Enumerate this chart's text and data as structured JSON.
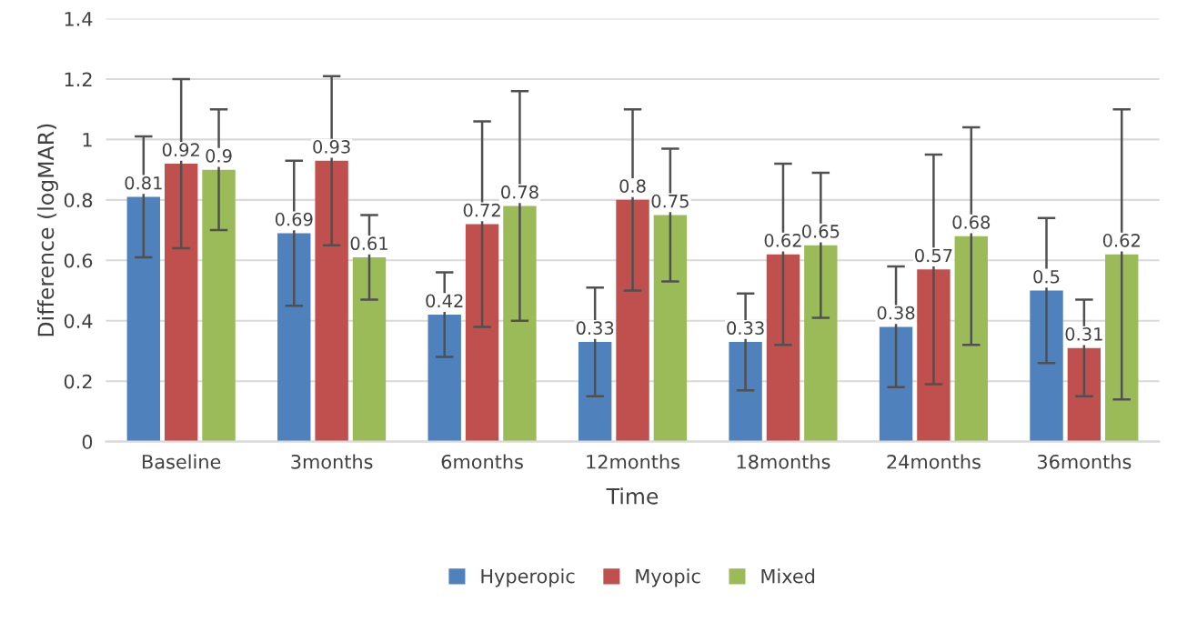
{
  "chart_data": {
    "type": "bar",
    "xlabel": "Time",
    "ylabel": "Difference (logMAR)",
    "categories": [
      "Baseline",
      "3months",
      "6months",
      "12months",
      "18months",
      "24months",
      "36months"
    ],
    "series": [
      {
        "name": "Hyperopic",
        "color": "#4f81bd",
        "values": [
          0.81,
          0.69,
          0.42,
          0.33,
          0.33,
          0.38,
          0.5
        ],
        "errors": [
          [
            0.61,
            1.01
          ],
          [
            0.45,
            0.93
          ],
          [
            0.28,
            0.56
          ],
          [
            0.15,
            0.51
          ],
          [
            0.17,
            0.49
          ],
          [
            0.18,
            0.58
          ],
          [
            0.26,
            0.74
          ]
        ]
      },
      {
        "name": "Myopic",
        "color": "#c0504d",
        "values": [
          0.92,
          0.93,
          0.72,
          0.8,
          0.62,
          0.57,
          0.31
        ],
        "errors": [
          [
            0.64,
            1.2
          ],
          [
            0.65,
            1.21
          ],
          [
            0.38,
            1.06
          ],
          [
            0.5,
            1.1
          ],
          [
            0.32,
            0.92
          ],
          [
            0.19,
            0.95
          ],
          [
            0.15,
            0.47
          ]
        ]
      },
      {
        "name": "Mixed",
        "color": "#9bbb59",
        "values": [
          0.9,
          0.61,
          0.78,
          0.75,
          0.65,
          0.68,
          0.62
        ],
        "errors": [
          [
            0.7,
            1.1
          ],
          [
            0.47,
            0.75
          ],
          [
            0.4,
            1.16
          ],
          [
            0.53,
            0.97
          ],
          [
            0.41,
            0.89
          ],
          [
            0.32,
            1.04
          ],
          [
            0.14,
            1.1
          ]
        ]
      }
    ],
    "ylim": [
      0,
      1.4
    ],
    "yticks": [
      0,
      0.2,
      0.4,
      0.6,
      0.8,
      1,
      1.2,
      1.4
    ],
    "grid": "y",
    "legend": "bottom",
    "data_labels": true
  }
}
